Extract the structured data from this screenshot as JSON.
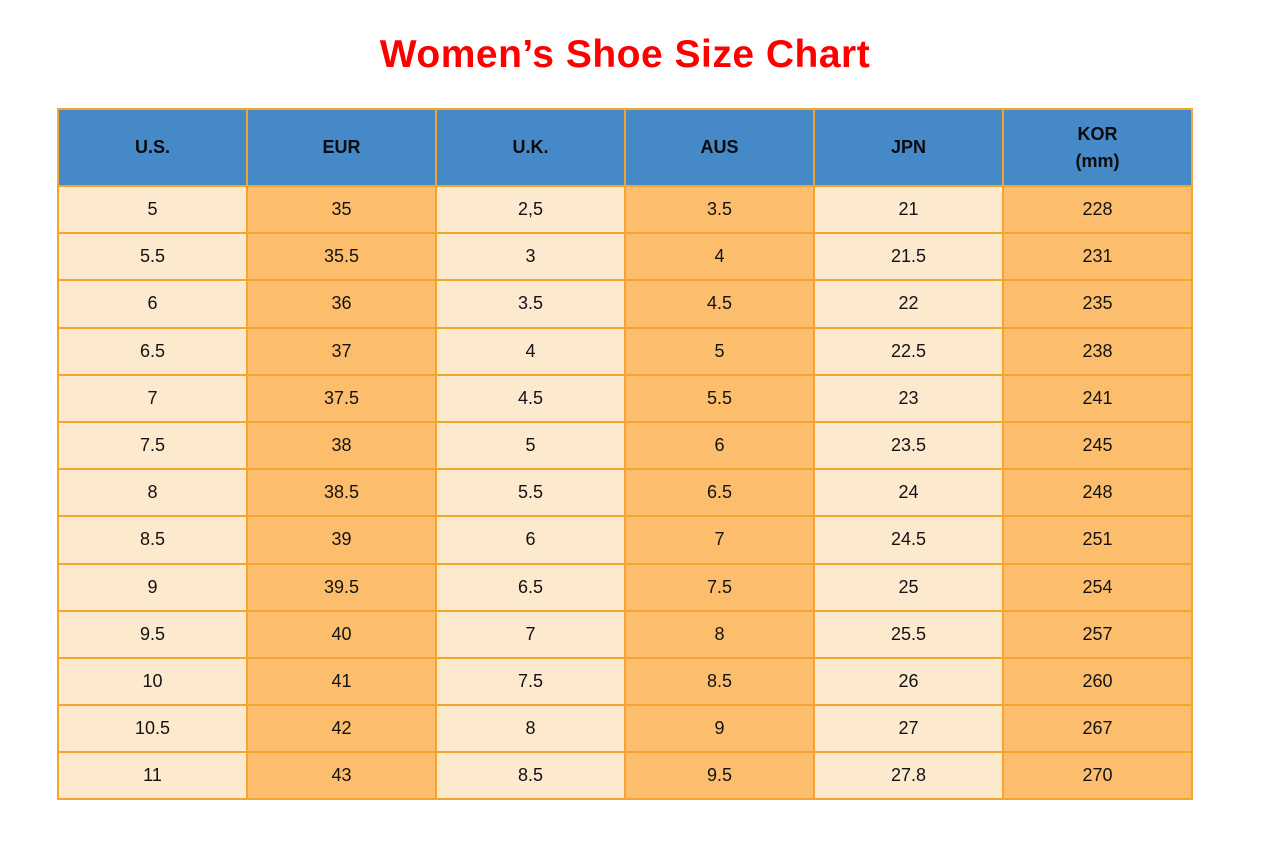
{
  "title": "Women’s Shoe Size Chart",
  "title_color": "#fe0000",
  "colors": {
    "header_background": "#4589c9",
    "column_light": "#fde9cd",
    "column_orange": "#fcbe6d",
    "grid_border": "#f3a52d",
    "cell_text": "#131313"
  },
  "header_labels": [
    "U.S.",
    "EUR",
    "U.K.",
    "AUS",
    "JPN",
    "KOR\n(mm)"
  ],
  "chart_data": {
    "type": "table",
    "title": "Women’s Shoe Size Chart",
    "columns": [
      "U.S.",
      "EUR",
      "U.K.",
      "AUS",
      "JPN",
      "KOR (mm)"
    ],
    "rows": [
      [
        "5",
        "35",
        "2,5",
        "3.5",
        "21",
        "228"
      ],
      [
        "5.5",
        "35.5",
        "3",
        "4",
        "21.5",
        "231"
      ],
      [
        "6",
        "36",
        "3.5",
        "4.5",
        "22",
        "235"
      ],
      [
        "6.5",
        "37",
        "4",
        "5",
        "22.5",
        "238"
      ],
      [
        "7",
        "37.5",
        "4.5",
        "5.5",
        "23",
        "241"
      ],
      [
        "7.5",
        "38",
        "5",
        "6",
        "23.5",
        "245"
      ],
      [
        "8",
        "38.5",
        "5.5",
        "6.5",
        "24",
        "248"
      ],
      [
        "8.5",
        "39",
        "6",
        "7",
        "24.5",
        "251"
      ],
      [
        "9",
        "39.5",
        "6.5",
        "7.5",
        "25",
        "254"
      ],
      [
        "9.5",
        "40",
        "7",
        "8",
        "25.5",
        "257"
      ],
      [
        "10",
        "41",
        "7.5",
        "8.5",
        "26",
        "260"
      ],
      [
        "10.5",
        "42",
        "8",
        "9",
        "27",
        "267"
      ],
      [
        "11",
        "43",
        "8.5",
        "9.5",
        "27.8",
        "270"
      ]
    ]
  }
}
